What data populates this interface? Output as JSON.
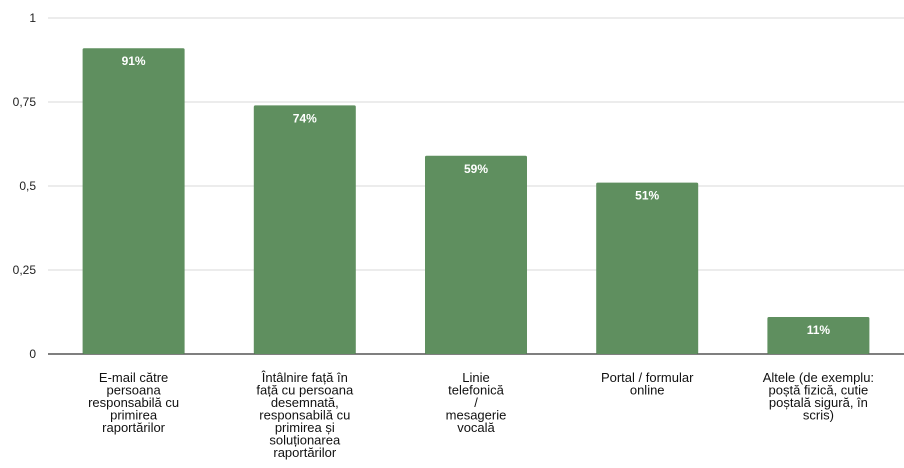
{
  "chart_data": {
    "type": "bar",
    "categories": [
      [
        "E-mail către",
        "persoana",
        "responsabilă cu",
        "primirea",
        "raportărilor"
      ],
      [
        "Întâlnire față în",
        "față cu persoana",
        "desemnată,",
        "responsabilă cu",
        "primirea și",
        "soluționarea",
        "raportărilor"
      ],
      [
        "Linie",
        "telefonică",
        "/",
        "mesagerie",
        "vocală"
      ],
      [
        "Portal / formular",
        "online"
      ],
      [
        "Altele (de exemplu:",
        "poștă fizică, cutie",
        "poștală sigură, în",
        "scris)"
      ]
    ],
    "values": [
      0.91,
      0.74,
      0.59,
      0.51,
      0.11
    ],
    "data_labels": [
      "91%",
      "74%",
      "59%",
      "51%",
      "11%"
    ],
    "yticks": [
      0,
      0.25,
      0.5,
      0.75,
      1
    ],
    "ytick_labels": [
      "0",
      "0,25",
      "0,5",
      "0,75",
      "1"
    ],
    "ylim": [
      0,
      1
    ],
    "bar_color": "#5f8f5f",
    "grid": true,
    "legend": "none",
    "title": "",
    "xlabel": "",
    "ylabel": ""
  }
}
